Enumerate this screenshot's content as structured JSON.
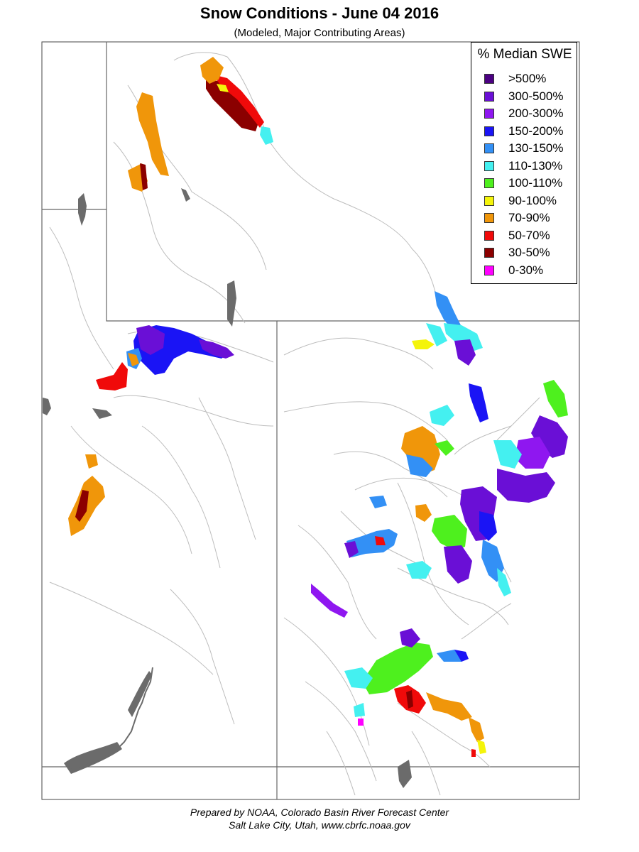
{
  "title": "Snow Conditions - June 04 2016",
  "subtitle": "(Modeled, Major Contributing Areas)",
  "legend": {
    "title": "% Median SWE",
    "items": [
      {
        "label": ">500%",
        "color": "#4b0082"
      },
      {
        "label": "300-500%",
        "color": "#6a0fd6"
      },
      {
        "label": "200-300%",
        "color": "#8f17f0"
      },
      {
        "label": "150-200%",
        "color": "#1a14f5"
      },
      {
        "label": "130-150%",
        "color": "#3390f5"
      },
      {
        "label": "110-130%",
        "color": "#44f0f0"
      },
      {
        "label": "100-110%",
        "color": "#4ef01e"
      },
      {
        "label": "90-100%",
        "color": "#f4f40a"
      },
      {
        "label": "70-90%",
        "color": "#f0960a"
      },
      {
        "label": "50-70%",
        "color": "#f00a0a"
      },
      {
        "label": "30-50%",
        "color": "#8b0000"
      },
      {
        "label": "0-30%",
        "color": "#ff00ff"
      }
    ]
  },
  "footer": {
    "line1": "Prepared by NOAA, Colorado Basin River Forecast Center",
    "line2": "Salt Lake City, Utah, www.cbrfc.noaa.gov"
  }
}
